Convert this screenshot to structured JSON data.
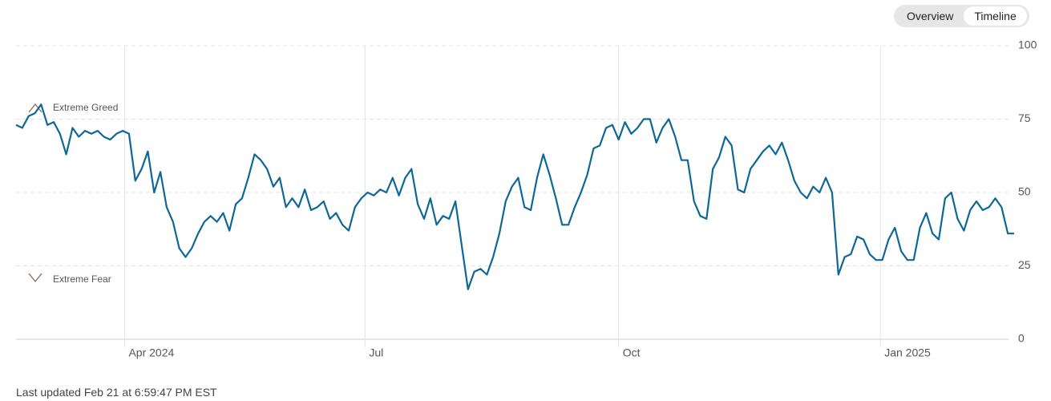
{
  "ui": {
    "tabs": [
      "Overview",
      "Timeline"
    ],
    "active_tab": 1
  },
  "chart_data": {
    "type": "line",
    "annotations": [
      "Extreme Greed",
      "Extreme Fear"
    ],
    "color": "#0e6795",
    "values": [
      73,
      72,
      76,
      77,
      80,
      73,
      74,
      70,
      63,
      72,
      69,
      71,
      70,
      71,
      69,
      68,
      70,
      71,
      70,
      54,
      58,
      64,
      50,
      57,
      45,
      40,
      31,
      28,
      31,
      36,
      40,
      42,
      40,
      43,
      37,
      46,
      48,
      55,
      63,
      61,
      58,
      52,
      55,
      45,
      48,
      45,
      51,
      44,
      45,
      47,
      41,
      43,
      39,
      37,
      45,
      48,
      50,
      49,
      51,
      50,
      55,
      49,
      55,
      58,
      46,
      41,
      48,
      39,
      42,
      41,
      47,
      32,
      17,
      23,
      24,
      22,
      28,
      36,
      47,
      52,
      55,
      45,
      44,
      55,
      63,
      56,
      48,
      39,
      39,
      45,
      50,
      56,
      65,
      66,
      72,
      73,
      68,
      74,
      70,
      72,
      75,
      75,
      67,
      72,
      75,
      69,
      61,
      61,
      47,
      42,
      41,
      58,
      62,
      69,
      66,
      51,
      50,
      58,
      61,
      64,
      66,
      63,
      67,
      61,
      54,
      50,
      48,
      52,
      50,
      55,
      50,
      22,
      28,
      29,
      35,
      34,
      29,
      27,
      27,
      34,
      38,
      30,
      27,
      27,
      38,
      43,
      36,
      34,
      48,
      50,
      41,
      37,
      44,
      47,
      44,
      45,
      48,
      45,
      36,
      36
    ],
    "xlim": [
      0,
      159
    ],
    "xticks": [
      {
        "value": 17.3,
        "label": "Apr 2024"
      },
      {
        "value": 55.6,
        "label": "Jul"
      },
      {
        "value": 96,
        "label": "Oct"
      },
      {
        "value": 137.7,
        "label": "Jan 2025"
      }
    ],
    "ylim": [
      0,
      100
    ],
    "yticks": [
      0,
      25,
      50,
      75,
      100
    ],
    "grid": true
  },
  "footer": "Last updated Feb 21 at 6:59:47 PM EST"
}
